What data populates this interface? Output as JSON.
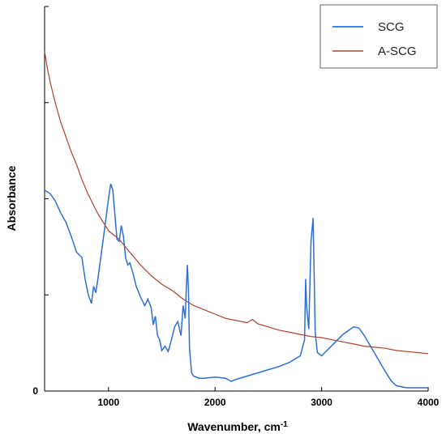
{
  "chart_data": {
    "type": "line",
    "title": "",
    "xlabel": "Wavenumber, cm",
    "xlabel_superscript": "-1",
    "ylabel": "Absorbance",
    "xlim": [
      400,
      4000
    ],
    "ylim": [
      0,
      3.6
    ],
    "x_ticks": [
      "1000",
      "2000",
      "3000",
      "4000"
    ],
    "y_tick_labels": [
      "0"
    ],
    "grid": false,
    "legend_position": "top-right",
    "series": [
      {
        "name": "SCG",
        "color": "#2e6fd6",
        "x": [
          400,
          450,
          500,
          550,
          600,
          650,
          700,
          750,
          780,
          810,
          840,
          860,
          880,
          900,
          950,
          1000,
          1020,
          1040,
          1060,
          1080,
          1100,
          1120,
          1140,
          1160,
          1180,
          1200,
          1230,
          1260,
          1300,
          1340,
          1370,
          1400,
          1420,
          1440,
          1460,
          1480,
          1500,
          1530,
          1560,
          1590,
          1620,
          1650,
          1680,
          1700,
          1720,
          1730,
          1740,
          1750,
          1760,
          1780,
          1800,
          1850,
          1900,
          2000,
          2100,
          2150,
          2200,
          2300,
          2400,
          2500,
          2600,
          2700,
          2800,
          2840,
          2850,
          2860,
          2880,
          2900,
          2920,
          2930,
          2940,
          2960,
          3000,
          3100,
          3200,
          3300,
          3350,
          3400,
          3500,
          3600,
          3650,
          3700,
          3800,
          3900,
          4000
        ],
        "y": [
          1.88,
          1.85,
          1.78,
          1.67,
          1.58,
          1.45,
          1.3,
          1.25,
          1.05,
          0.9,
          0.82,
          0.98,
          0.92,
          1.05,
          1.42,
          1.8,
          1.94,
          1.88,
          1.65,
          1.42,
          1.4,
          1.55,
          1.45,
          1.25,
          1.18,
          1.2,
          1.1,
          0.98,
          0.88,
          0.8,
          0.86,
          0.78,
          0.62,
          0.7,
          0.52,
          0.48,
          0.38,
          0.42,
          0.37,
          0.48,
          0.6,
          0.65,
          0.52,
          0.8,
          0.68,
          0.95,
          1.18,
          0.95,
          0.4,
          0.17,
          0.14,
          0.12,
          0.12,
          0.13,
          0.12,
          0.09,
          0.11,
          0.14,
          0.17,
          0.2,
          0.23,
          0.27,
          0.33,
          0.48,
          1.05,
          0.78,
          0.58,
          1.4,
          1.62,
          1.1,
          0.55,
          0.36,
          0.33,
          0.43,
          0.53,
          0.6,
          0.59,
          0.52,
          0.35,
          0.18,
          0.1,
          0.05,
          0.03,
          0.03,
          0.03
        ]
      },
      {
        "name": "A-SCG",
        "color": "#b3402a",
        "x": [
          400,
          430,
          460,
          500,
          550,
          600,
          650,
          700,
          750,
          800,
          850,
          900,
          950,
          1000,
          1050,
          1100,
          1150,
          1200,
          1250,
          1300,
          1400,
          1500,
          1600,
          1700,
          1800,
          1900,
          2000,
          2100,
          2200,
          2300,
          2350,
          2400,
          2500,
          2600,
          2700,
          2800,
          2900,
          3000,
          3100,
          3200,
          3300,
          3400,
          3500,
          3600,
          3700,
          3800,
          3900,
          4000
        ],
        "y": [
          3.18,
          3.0,
          2.86,
          2.7,
          2.52,
          2.38,
          2.24,
          2.12,
          1.98,
          1.86,
          1.76,
          1.66,
          1.58,
          1.5,
          1.46,
          1.42,
          1.36,
          1.3,
          1.24,
          1.18,
          1.08,
          1.0,
          0.94,
          0.86,
          0.8,
          0.76,
          0.72,
          0.68,
          0.66,
          0.64,
          0.67,
          0.63,
          0.6,
          0.57,
          0.55,
          0.53,
          0.51,
          0.5,
          0.48,
          0.46,
          0.44,
          0.42,
          0.41,
          0.4,
          0.38,
          0.37,
          0.36,
          0.35
        ]
      }
    ]
  }
}
